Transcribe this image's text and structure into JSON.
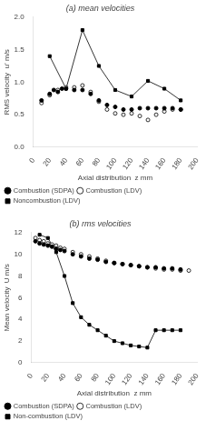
{
  "chart_data": [
    {
      "type": "scatter",
      "title": "(a) mean velocities",
      "x_label": "Axial distribution  z mm",
      "y_label": "RMS velocity  u’ m/s",
      "xlim": [
        0,
        200
      ],
      "xticks": [
        0,
        20,
        40,
        60,
        80,
        100,
        120,
        140,
        160,
        180,
        200
      ],
      "ylim": [
        0.0,
        2.0
      ],
      "yticks": [
        {
          "value": 0.0,
          "label": "0.0"
        },
        0.5,
        {
          "value": 1.0,
          "label": "1.0"
        },
        1.5,
        {
          "value": 2.0,
          "label": "2.0"
        }
      ],
      "grid": false,
      "legend": "lower left",
      "series": [
        {
          "name": "Combustion (SDPA)",
          "type": "scatter",
          "color": "#000000",
          "marker": "circle",
          "line_style": "none",
          "x": [
            10,
            20,
            25,
            30,
            35,
            40,
            50,
            60,
            70,
            80,
            90,
            100,
            110,
            120,
            130,
            140,
            150,
            160,
            170,
            180
          ],
          "values": [
            0.72,
            0.82,
            0.88,
            0.85,
            0.9,
            0.9,
            0.88,
            0.88,
            0.82,
            0.72,
            0.65,
            0.62,
            0.58,
            0.58,
            0.6,
            0.6,
            0.6,
            0.6,
            0.6,
            0.58
          ]
        },
        {
          "name": "Combustion (LDV)",
          "type": "scatter",
          "color": "#000000",
          "marker": "open_circle",
          "line_style": "none",
          "x": [
            10,
            20,
            30,
            40,
            50,
            60,
            70,
            80,
            90,
            100,
            110,
            120,
            130,
            140,
            150,
            160,
            170,
            180
          ],
          "values": [
            0.68,
            0.8,
            0.88,
            0.92,
            0.92,
            0.95,
            0.85,
            0.7,
            0.58,
            0.52,
            0.5,
            0.52,
            0.48,
            0.42,
            0.5,
            0.55,
            0.58,
            0.58
          ]
        },
        {
          "name": "Noncombustion (LDV)",
          "type": "line",
          "color": "#000000",
          "marker": "square",
          "line_style": "solid",
          "x": [
            20,
            40,
            60,
            80,
            100,
            120,
            140,
            160,
            180
          ],
          "values": [
            1.4,
            0.9,
            1.8,
            1.25,
            0.88,
            0.78,
            1.02,
            0.9,
            0.72
          ]
        }
      ]
    },
    {
      "type": "scatter",
      "title": "(b) rms velocities",
      "x_label": "Axial distribution  z mm",
      "y_label": "Mean velocity  U m/s",
      "xlim": [
        0,
        200
      ],
      "xticks": [
        0,
        20,
        40,
        60,
        80,
        100,
        120,
        140,
        160,
        180,
        200
      ],
      "ylim": [
        0,
        12
      ],
      "yticks": [
        0,
        2,
        4,
        6,
        8,
        10,
        12
      ],
      "grid": false,
      "legend": "lower left",
      "series": [
        {
          "name": "Combustion (SDPA)",
          "type": "scatter",
          "color": "#000000",
          "marker": "circle",
          "line_style": "none",
          "x": [
            5,
            10,
            15,
            20,
            25,
            30,
            35,
            40,
            50,
            60,
            70,
            80,
            90,
            100,
            110,
            120,
            130,
            140,
            150,
            160,
            170,
            180
          ],
          "values": [
            11.2,
            11.0,
            10.9,
            10.8,
            10.7,
            10.5,
            10.4,
            10.3,
            10.0,
            9.8,
            9.6,
            9.5,
            9.3,
            9.2,
            9.1,
            9.0,
            8.9,
            8.8,
            8.8,
            8.7,
            8.7,
            8.6
          ]
        },
        {
          "name": "Combustion (LDV)",
          "type": "scatter",
          "color": "#000000",
          "marker": "open_circle",
          "line_style": "none",
          "x": [
            5,
            10,
            15,
            20,
            25,
            30,
            35,
            40,
            50,
            60,
            70,
            80,
            90,
            100,
            110,
            120,
            130,
            140,
            150,
            160,
            170,
            180,
            190
          ],
          "values": [
            11.5,
            11.3,
            11.2,
            11.0,
            10.9,
            10.8,
            10.6,
            10.5,
            10.2,
            10.0,
            9.8,
            9.6,
            9.4,
            9.2,
            9.1,
            9.0,
            8.9,
            8.8,
            8.7,
            8.6,
            8.6,
            8.5,
            8.5
          ]
        },
        {
          "name": "Non-combustion (LDV)",
          "type": "line",
          "color": "#000000",
          "marker": "square",
          "line_style": "solid",
          "x": [
            10,
            20,
            30,
            40,
            50,
            60,
            70,
            80,
            90,
            100,
            110,
            120,
            130,
            140,
            150,
            160,
            170,
            180
          ],
          "values": [
            11.8,
            11.5,
            10.2,
            8.0,
            5.5,
            4.2,
            3.5,
            3.0,
            2.5,
            2.0,
            1.8,
            1.6,
            1.5,
            1.4,
            3.0,
            3.0,
            3.0,
            3.0
          ]
        }
      ]
    }
  ]
}
